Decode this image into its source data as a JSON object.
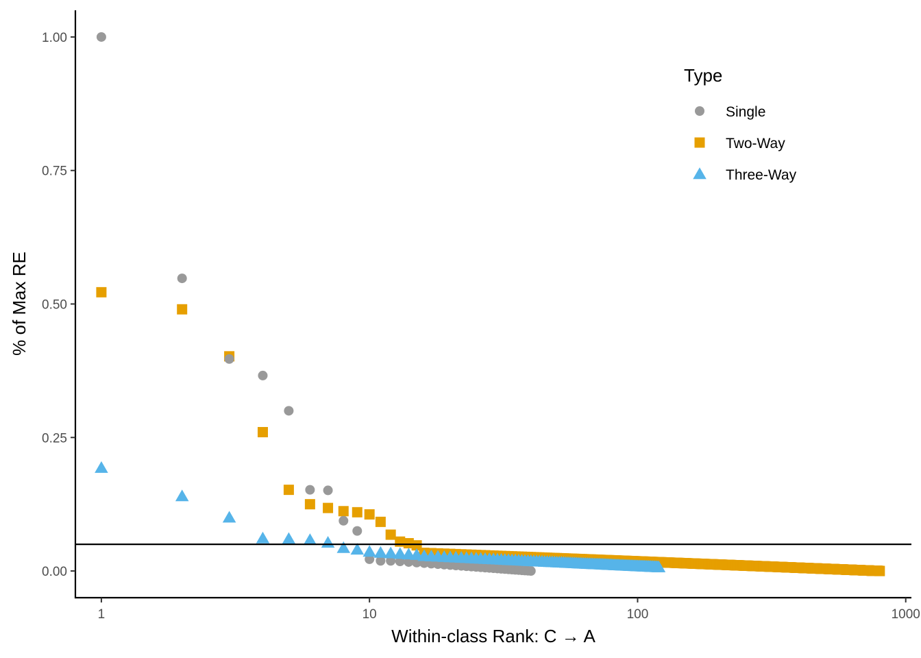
{
  "chart_data": {
    "type": "scatter",
    "title": "",
    "xlabel": "Within-class Rank: C → A",
    "ylabel": "% of Max RE",
    "x_scale": "log10",
    "xlim": [
      0.8,
      1050
    ],
    "ylim": [
      -0.05,
      1.05
    ],
    "x_ticks": [
      1,
      10,
      100,
      1000
    ],
    "x_tick_labels": [
      "1",
      "10",
      "100",
      "1000"
    ],
    "y_ticks": [
      0,
      0.25,
      0.5,
      0.75,
      1.0
    ],
    "y_tick_labels": [
      "0.00",
      "0.25",
      "0.50",
      "0.75",
      "1.00"
    ],
    "hline": 0.05,
    "grid": false,
    "legend": {
      "title": "Type",
      "position": "top-right"
    },
    "series": [
      {
        "name": "Single",
        "shape": "circle",
        "color": "#999999",
        "count": 40,
        "points": [
          [
            1,
            1.0
          ],
          [
            2,
            0.548
          ],
          [
            3,
            0.397
          ],
          [
            4,
            0.366
          ],
          [
            5,
            0.3
          ],
          [
            6,
            0.152
          ],
          [
            7,
            0.151
          ],
          [
            8,
            0.094
          ],
          [
            9,
            0.075
          ],
          [
            10,
            0.022
          ],
          [
            11,
            0.019
          ],
          [
            12,
            0.019
          ]
        ],
        "tail": {
          "x_from": 13,
          "x_to": 40,
          "y_from": 0.018,
          "y_to": 0.0
        }
      },
      {
        "name": "Two-Way",
        "shape": "square",
        "color": "#E69F00",
        "count": 800,
        "points": [
          [
            1,
            0.522
          ],
          [
            2,
            0.49
          ],
          [
            3,
            0.402
          ],
          [
            4,
            0.26
          ],
          [
            5,
            0.152
          ],
          [
            6,
            0.125
          ],
          [
            7,
            0.118
          ],
          [
            8,
            0.112
          ],
          [
            9,
            0.11
          ],
          [
            10,
            0.106
          ],
          [
            11,
            0.092
          ],
          [
            12,
            0.068
          ],
          [
            13,
            0.055
          ],
          [
            14,
            0.052
          ],
          [
            15,
            0.048
          ]
        ],
        "tail": {
          "x_from": 16,
          "x_to": 800,
          "y_from": 0.034,
          "y_to": 0.0
        }
      },
      {
        "name": "Three-Way",
        "shape": "triangle",
        "color": "#56B4E9",
        "count": 120,
        "points": [
          [
            1,
            0.193
          ],
          [
            2,
            0.14
          ],
          [
            3,
            0.1
          ],
          [
            4,
            0.061
          ],
          [
            5,
            0.06
          ],
          [
            6,
            0.058
          ],
          [
            7,
            0.053
          ],
          [
            8,
            0.043
          ],
          [
            9,
            0.04
          ],
          [
            10,
            0.036
          ],
          [
            11,
            0.034
          ],
          [
            12,
            0.033
          ],
          [
            13,
            0.032
          ],
          [
            14,
            0.031
          ],
          [
            15,
            0.03
          ]
        ],
        "tail": {
          "x_from": 16,
          "x_to": 120,
          "y_from": 0.028,
          "y_to": 0.007
        }
      }
    ]
  }
}
